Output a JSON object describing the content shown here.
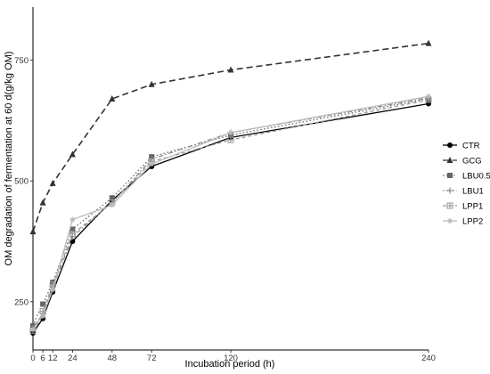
{
  "chart_data": {
    "type": "line",
    "title": "",
    "xlabel": "Incubation period (h)",
    "ylabel": "OM degradation of fermentation at 60 d(g/kg OM)",
    "x": [
      0,
      3,
      6,
      12,
      24,
      48,
      72,
      120,
      240
    ],
    "x_ticks": [
      0,
      6,
      12,
      24,
      48,
      72,
      120,
      240
    ],
    "x_tick_labels": [
      "0",
      "6",
      "12",
      "24",
      "48",
      "72",
      "120",
      "240"
    ],
    "xlim": [
      0,
      240
    ],
    "y_ticks": [
      250,
      500,
      750
    ],
    "y_tick_labels": [
      "250",
      "500",
      "750"
    ],
    "ylim": [
      150,
      860
    ],
    "grid": false,
    "legend_position": "right",
    "series": [
      {
        "name": "CTR",
        "values": [
          185,
          200,
          215,
          270,
          375,
          460,
          530,
          590,
          660
        ],
        "color": "#000000",
        "dash": "solid",
        "marker": "circle"
      },
      {
        "name": "GCG",
        "values": [
          395,
          425,
          455,
          495,
          555,
          670,
          700,
          730,
          785
        ],
        "color": "#333333",
        "dash": "longdash",
        "marker": "triangle"
      },
      {
        "name": "LBU0.5",
        "values": [
          200,
          225,
          245,
          290,
          400,
          465,
          550,
          595,
          670
        ],
        "color": "#666666",
        "dash": "dotted",
        "marker": "square"
      },
      {
        "name": "LBU1",
        "values": [
          195,
          210,
          225,
          280,
          385,
          455,
          545,
          600,
          672
        ],
        "color": "#888888",
        "dash": "dotdash",
        "marker": "plus"
      },
      {
        "name": "LPP1",
        "values": [
          190,
          205,
          230,
          285,
          390,
          455,
          540,
          585,
          668
        ],
        "color": "#999999",
        "dash": "dash",
        "marker": "boxplus"
      },
      {
        "name": "LPP2",
        "values": [
          192,
          208,
          220,
          275,
          420,
          450,
          535,
          600,
          675
        ],
        "color": "#bbbbbb",
        "dash": "solid",
        "marker": "asterisk"
      }
    ]
  }
}
